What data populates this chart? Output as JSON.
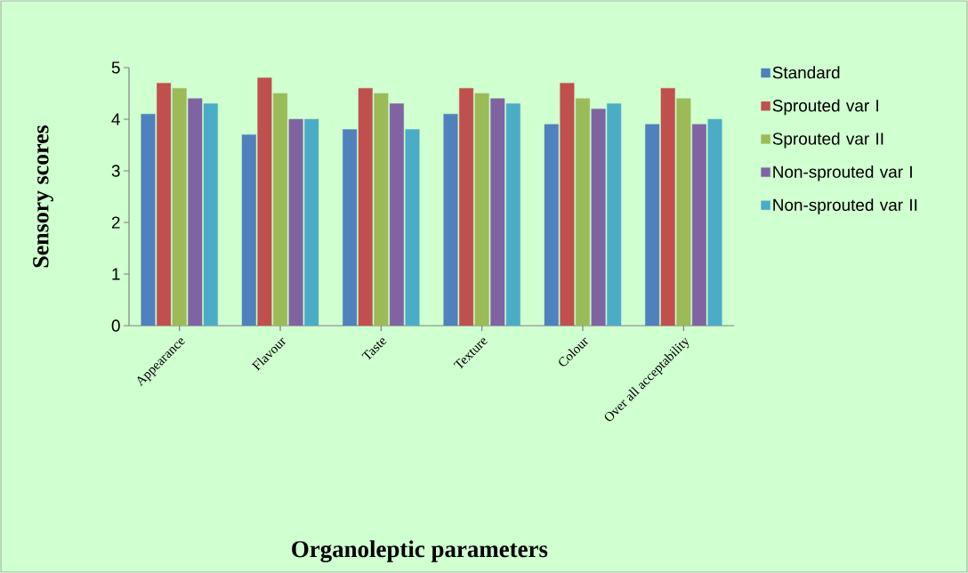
{
  "chart_data": {
    "type": "bar",
    "xlabel": "Organoleptic parameters",
    "ylabel": "Sensory scores",
    "categories": [
      "Appearance",
      "Flavour",
      "Taste",
      "Texture",
      "Colour",
      "Over all acceptability"
    ],
    "series": [
      {
        "name": "Standard",
        "color": "#4f81bd",
        "values": [
          4.1,
          3.7,
          3.8,
          4.1,
          3.9,
          3.9
        ]
      },
      {
        "name": "Sprouted var I",
        "color": "#c0504d",
        "values": [
          4.7,
          4.8,
          4.6,
          4.6,
          4.7,
          4.6
        ]
      },
      {
        "name": "Sprouted var II",
        "color": "#9bbb59",
        "values": [
          4.6,
          4.5,
          4.5,
          4.5,
          4.4,
          4.4
        ]
      },
      {
        "name": "Non-sprouted var I",
        "color": "#8064a2",
        "values": [
          4.4,
          4.0,
          4.3,
          4.4,
          4.2,
          3.9
        ]
      },
      {
        "name": "Non-sprouted var II",
        "color": "#4bacc6",
        "values": [
          4.3,
          4.0,
          3.8,
          4.3,
          4.3,
          4.0
        ]
      }
    ],
    "ylim": [
      0,
      5
    ],
    "yticks": [
      0,
      1,
      2,
      3,
      4,
      5
    ],
    "legend": "right"
  }
}
